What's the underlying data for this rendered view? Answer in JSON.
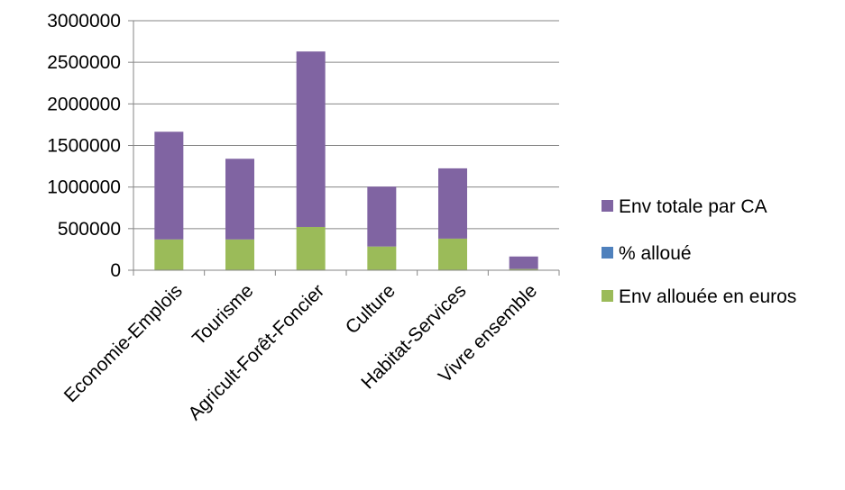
{
  "chart_data": {
    "type": "bar",
    "stacked": true,
    "title": "",
    "xlabel": "",
    "ylabel": "",
    "ylim": [
      0,
      3000000
    ],
    "yticks": [
      0,
      500000,
      1000000,
      1500000,
      2000000,
      2500000,
      3000000
    ],
    "ytick_labels": [
      "0",
      "500000",
      "1000000",
      "1500000",
      "2000000",
      "2500000",
      "3000000"
    ],
    "grid": true,
    "legend_position": "right",
    "categories": [
      "Economie-Emplois",
      "Tourisme",
      "Agricult-Forêt-Foncier",
      "Culture",
      "Habitat-Services",
      "Vivre ensemble"
    ],
    "series": [
      {
        "name": "Env allouée en euros",
        "color": "#9bbb59",
        "values": [
          370000,
          370000,
          520000,
          285000,
          380000,
          15000
        ]
      },
      {
        "name": "% alloué",
        "color": "#4f81bd",
        "values": [
          0.22,
          0.28,
          0.2,
          0.28,
          0.31,
          0.09
        ]
      },
      {
        "name": "Env totale par CA",
        "color": "#8064a2",
        "values": [
          1295000,
          970000,
          2110000,
          720000,
          845000,
          150000
        ]
      }
    ],
    "legend_order": [
      "Env totale par CA",
      "% alloué",
      "Env allouée en euros"
    ]
  }
}
